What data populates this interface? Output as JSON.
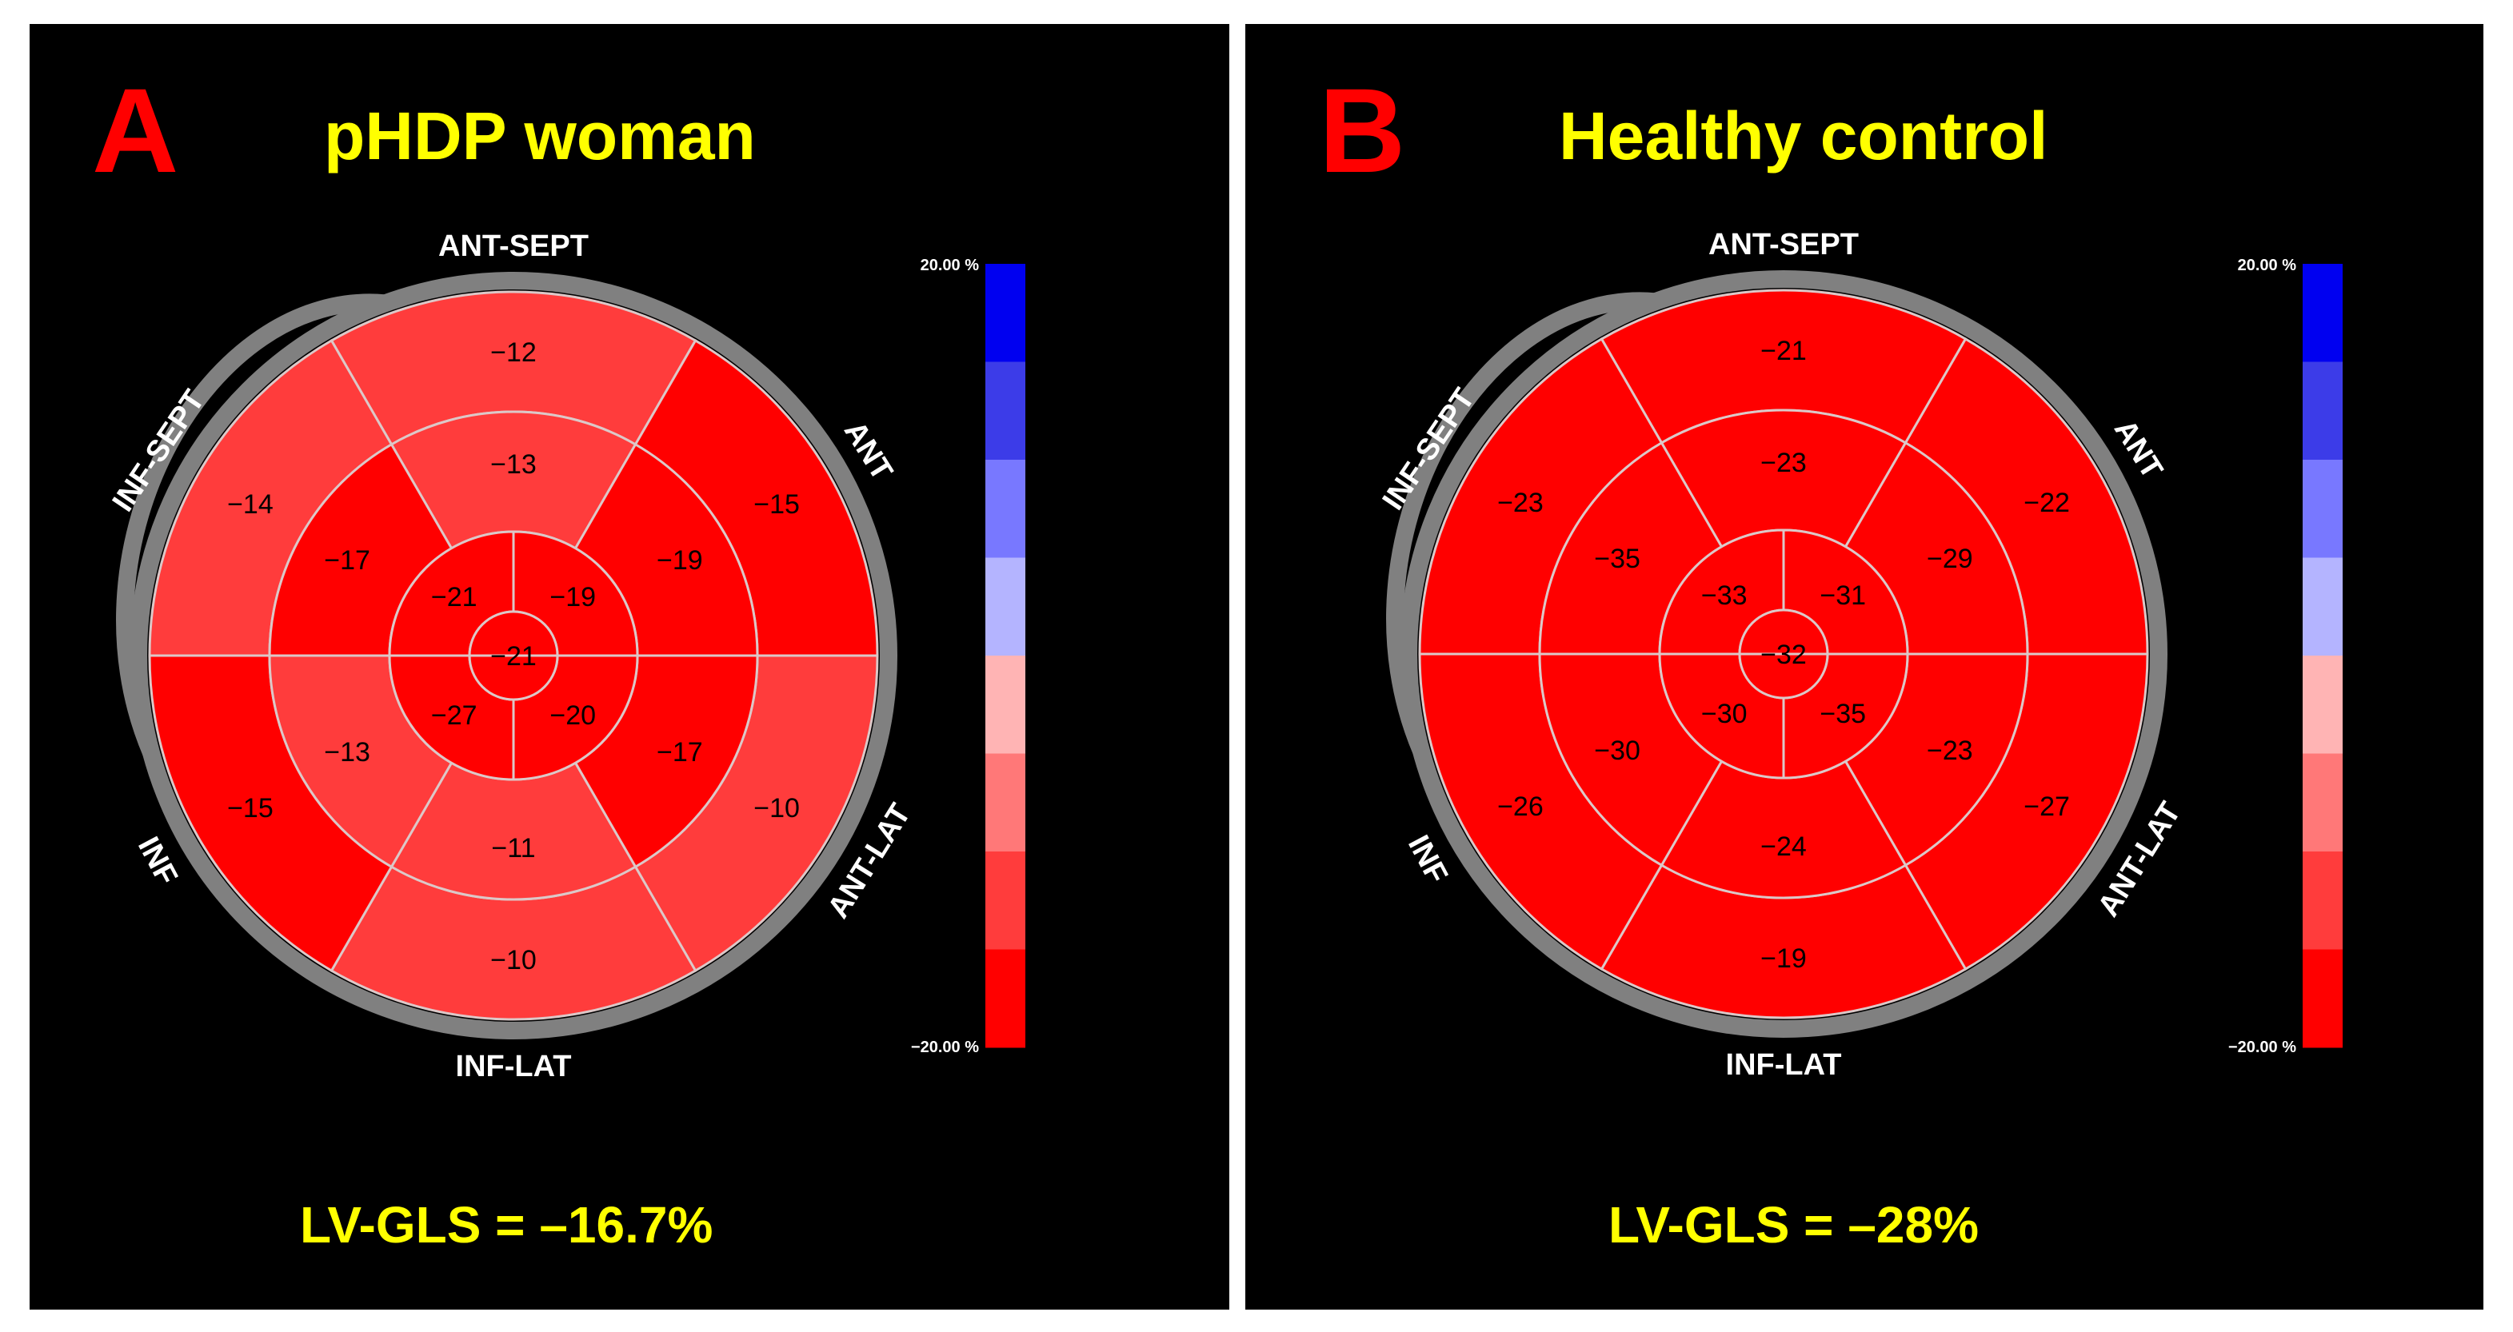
{
  "chart_data": [
    {
      "type": "bullseye",
      "panel_letter": "A",
      "title": "pHDP woman",
      "summary": "LV-GLS = –16.7%",
      "wall_labels": [
        "ANT-SEPT",
        "ANT",
        "ANT-LAT",
        "INF-LAT",
        "INF",
        "INF-SEPT"
      ],
      "segments": {
        "basal": [
          "−12",
          "−15",
          "−10",
          "−10",
          "−15",
          "−14"
        ],
        "mid": [
          "−13",
          "−19",
          "−17",
          "−11",
          "−13",
          "−17"
        ],
        "apical": [
          "−19",
          "−20",
          "−27",
          "−21"
        ],
        "apex": "−21"
      },
      "scale": {
        "max_label": "20.00 %",
        "min_label": "−20.00 %"
      }
    },
    {
      "type": "bullseye",
      "panel_letter": "B",
      "title": "Healthy control",
      "summary": "LV-GLS = –28%",
      "wall_labels": [
        "ANT-SEPT",
        "ANT",
        "ANT-LAT",
        "INF-LAT",
        "INF",
        "INF-SEPT"
      ],
      "segments": {
        "basal": [
          "−21",
          "−22",
          "−27",
          "−19",
          "−26",
          "−23"
        ],
        "mid": [
          "−23",
          "−29",
          "−23",
          "−24",
          "−30",
          "−35"
        ],
        "apical": [
          "−31",
          "−35",
          "−30",
          "−33"
        ],
        "apex": "−32"
      },
      "scale": {
        "max_label": "20.00 %",
        "min_label": "−20.00 %"
      }
    }
  ],
  "colors": {
    "scale": [
      "#0000f0",
      "#3c3ce8",
      "#7878ff",
      "#b4b4ff",
      "#ffb4b4",
      "#ff7878",
      "#ff3c3c",
      "#ff0000"
    ],
    "ring": "#808080",
    "grid_line": "#dcc8c8"
  }
}
